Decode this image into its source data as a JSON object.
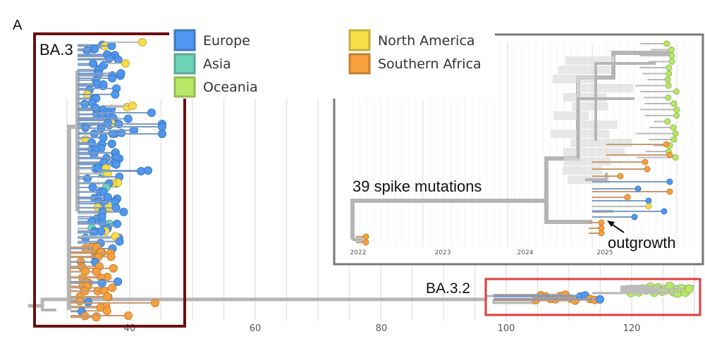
{
  "panel_label": "A",
  "legend": [
    {
      "label": "Europe",
      "color": "#4f97f0"
    },
    {
      "label": "Asia",
      "color": "#6fd3b8"
    },
    {
      "label": "Oceania",
      "color": "#b8e868"
    },
    {
      "label": "North America",
      "color": "#f7dd4a"
    },
    {
      "label": "Southern Africa",
      "color": "#f7a03e"
    }
  ],
  "clades": {
    "ba3": {
      "label": "BA.3",
      "box_color": "#6b0f0f"
    },
    "ba32": {
      "label": "BA.3.2",
      "box_color": "#e43c3c"
    }
  },
  "main_axis": {
    "ticks": [
      "40",
      "60",
      "80",
      "100",
      "120"
    ]
  },
  "inset": {
    "box_color": "#777777",
    "ticks": [
      "2022",
      "2023",
      "2024",
      "2025"
    ],
    "annotation": "39 spike mutations",
    "arrow_label": "outgrowth"
  },
  "branch_color": "#b5b5b5"
}
